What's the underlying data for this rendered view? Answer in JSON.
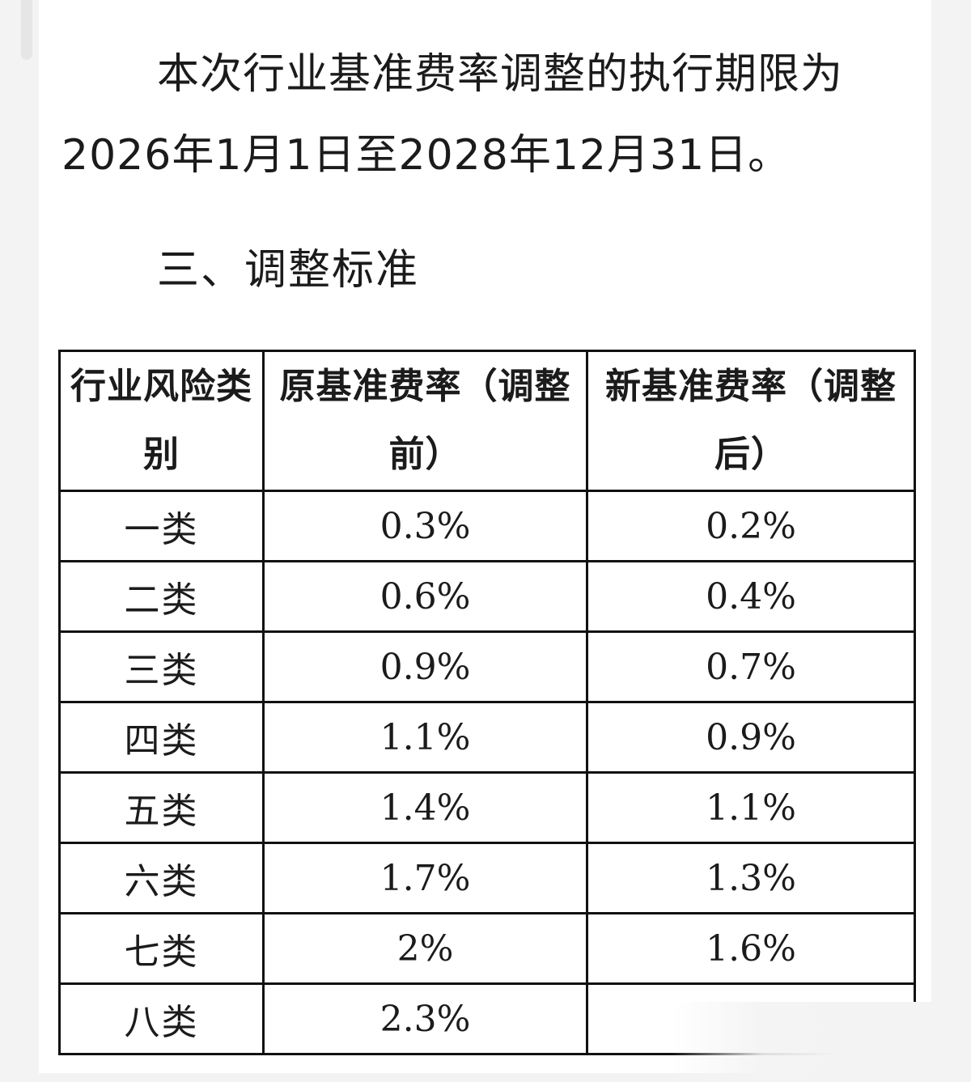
{
  "document": {
    "paragraph": "本次行业基准费率调整的执行期限为2026年1月1日至2028年12月31日。",
    "section_heading": "三、调整标准"
  },
  "table": {
    "headers": [
      "行业风险类别",
      "原基准费率（调整前）",
      "新基准费率（调整后）"
    ],
    "rows": [
      {
        "category": "一类",
        "old_rate": "0.3%",
        "new_rate": "0.2%"
      },
      {
        "category": "二类",
        "old_rate": "0.6%",
        "new_rate": "0.4%"
      },
      {
        "category": "三类",
        "old_rate": "0.9%",
        "new_rate": "0.7%"
      },
      {
        "category": "四类",
        "old_rate": "1.1%",
        "new_rate": "0.9%"
      },
      {
        "category": "五类",
        "old_rate": "1.4%",
        "new_rate": "1.1%"
      },
      {
        "category": "六类",
        "old_rate": "1.7%",
        "new_rate": "1.3%"
      },
      {
        "category": "七类",
        "old_rate": "2%",
        "new_rate": "1.6%"
      },
      {
        "category": "八类",
        "old_rate": "2.3%",
        "new_rate": ""
      }
    ]
  }
}
